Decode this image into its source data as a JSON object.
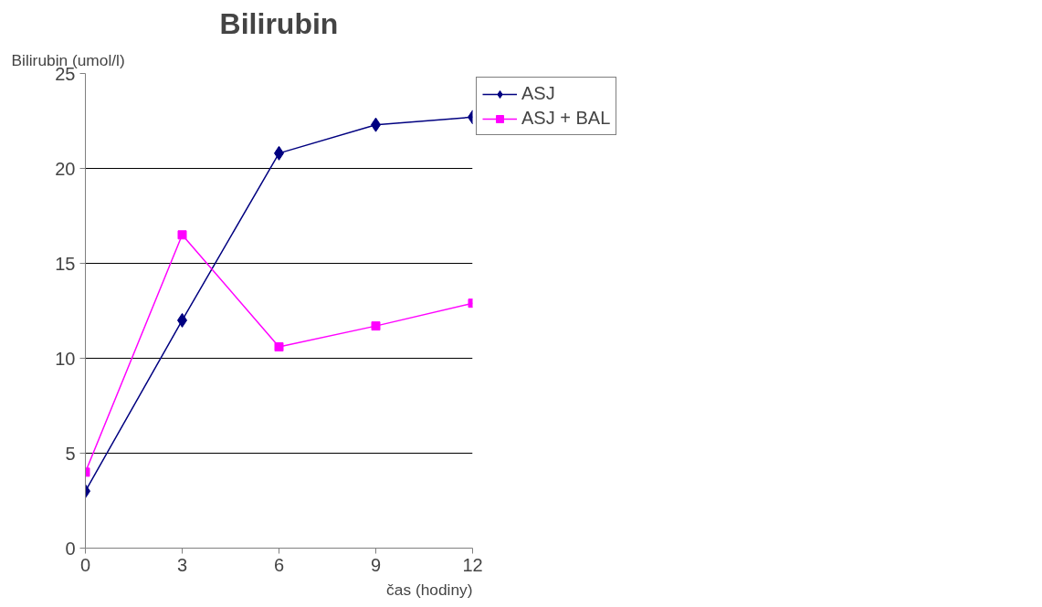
{
  "chart_data": {
    "type": "line",
    "title": "Bilirubin",
    "xlabel": "čas (hodiny)",
    "ylabel": "Bilirubin (umol/l)",
    "x": [
      0,
      3,
      6,
      9,
      12
    ],
    "xlim": [
      0,
      12
    ],
    "xticks": [
      0,
      3,
      6,
      9,
      12
    ],
    "ylim": [
      0,
      25
    ],
    "yticks": [
      0,
      5,
      10,
      15,
      20,
      25
    ],
    "grid": "y",
    "legend": "top right",
    "series": [
      {
        "name": "ASJ",
        "color": "#000080",
        "marker": "diamond",
        "values": [
          3.0,
          12.0,
          20.8,
          22.3,
          22.7
        ]
      },
      {
        "name": "ASJ + BAL",
        "color": "#ff00ff",
        "marker": "square",
        "values": [
          4.0,
          16.5,
          10.6,
          11.7,
          12.9
        ]
      }
    ]
  }
}
